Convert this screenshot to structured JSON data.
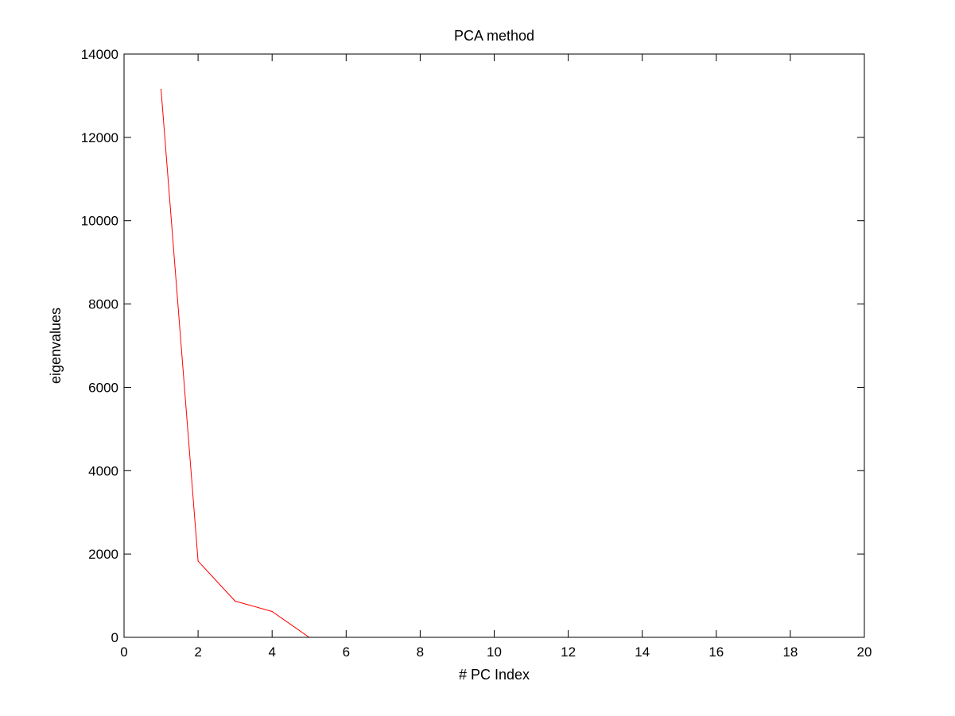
{
  "chart_data": {
    "type": "line",
    "title": "PCA method",
    "xlabel": "# PC Index",
    "ylabel": "eigenvalues",
    "xlim": [
      0,
      20
    ],
    "ylim": [
      0,
      14000
    ],
    "xticks": [
      0,
      2,
      4,
      6,
      8,
      10,
      12,
      14,
      16,
      18,
      20
    ],
    "yticks": [
      0,
      2000,
      4000,
      6000,
      8000,
      10000,
      12000,
      14000
    ],
    "grid": false,
    "box": true,
    "series": [
      {
        "color": "#ff0000",
        "x": [
          1,
          2,
          3,
          4,
          5
        ],
        "y": [
          13150,
          1830,
          870,
          620,
          0
        ]
      }
    ]
  }
}
